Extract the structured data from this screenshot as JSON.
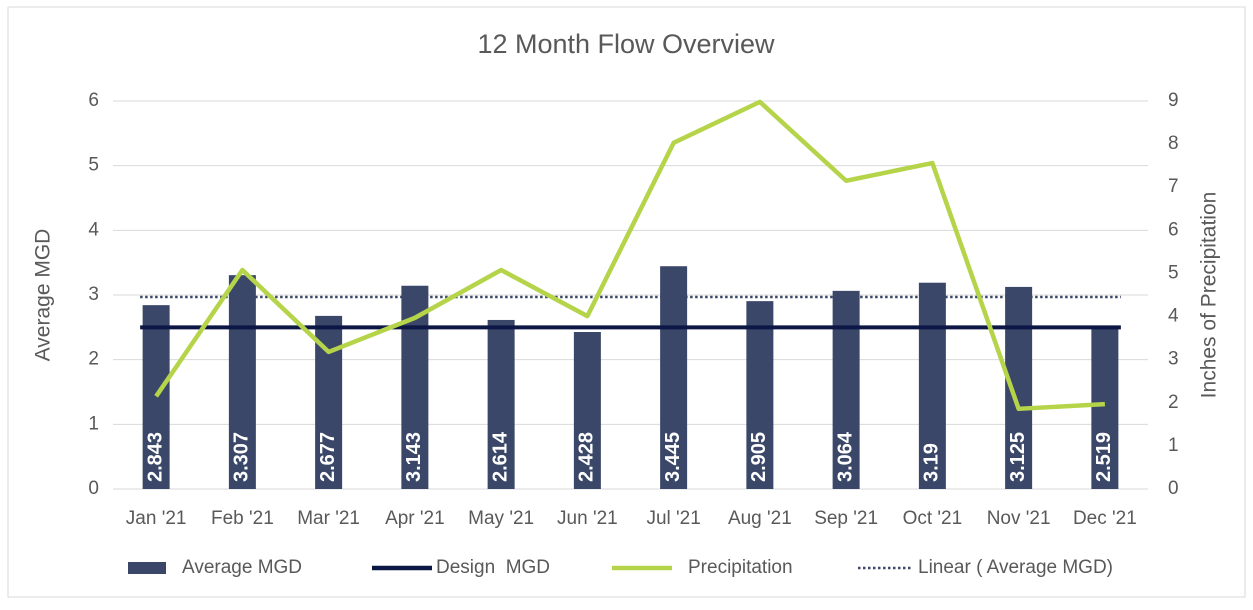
{
  "chart_data": {
    "type": "bar",
    "title": "12 Month Flow Overview",
    "y_label": "Average MGD",
    "y2_label": "Inches of Precipitation",
    "categories": [
      "Jan '21",
      "Feb '21",
      "Mar '21",
      "Apr '21",
      "May '21",
      "Jun '21",
      "Jul '21",
      "Aug '21",
      "Sep '21",
      "Oct '21",
      "Nov '21",
      "Dec '21"
    ],
    "series": [
      {
        "name": "Average MGD",
        "type": "bar",
        "color": "#3a4768",
        "values": [
          2.843,
          3.307,
          2.677,
          3.143,
          2.614,
          2.428,
          3.445,
          2.905,
          3.064,
          3.19,
          3.125,
          2.519
        ]
      },
      {
        "name": "Design  MGD",
        "type": "line",
        "color": "#0c1745",
        "values": [
          2.5,
          2.5,
          2.5,
          2.5,
          2.5,
          2.5,
          2.5,
          2.5,
          2.5,
          2.5,
          2.5,
          2.5
        ]
      },
      {
        "name": "Precipitation",
        "type": "line",
        "color": "#b5d44a",
        "axis": "y2",
        "values": [
          2.15,
          5.08,
          3.18,
          3.97,
          5.08,
          4.01,
          8.03,
          8.98,
          7.15,
          7.56,
          1.86,
          1.97
        ]
      },
      {
        "name": "Linear ( Average MGD)",
        "type": "dotted",
        "color": "#3a4768",
        "values": [
          2.97,
          2.97,
          2.97,
          2.97,
          2.97,
          2.97,
          2.97,
          2.97,
          2.97,
          2.97,
          2.97,
          2.97
        ]
      }
    ],
    "ylim": [
      0,
      6
    ],
    "yticks": [
      0,
      1,
      2,
      3,
      4,
      5,
      6
    ],
    "y2lim": [
      0,
      9
    ],
    "y2ticks": [
      0,
      1,
      2,
      3,
      4,
      5,
      6,
      7,
      8,
      9
    ],
    "grid": true,
    "legend": "bottom"
  }
}
